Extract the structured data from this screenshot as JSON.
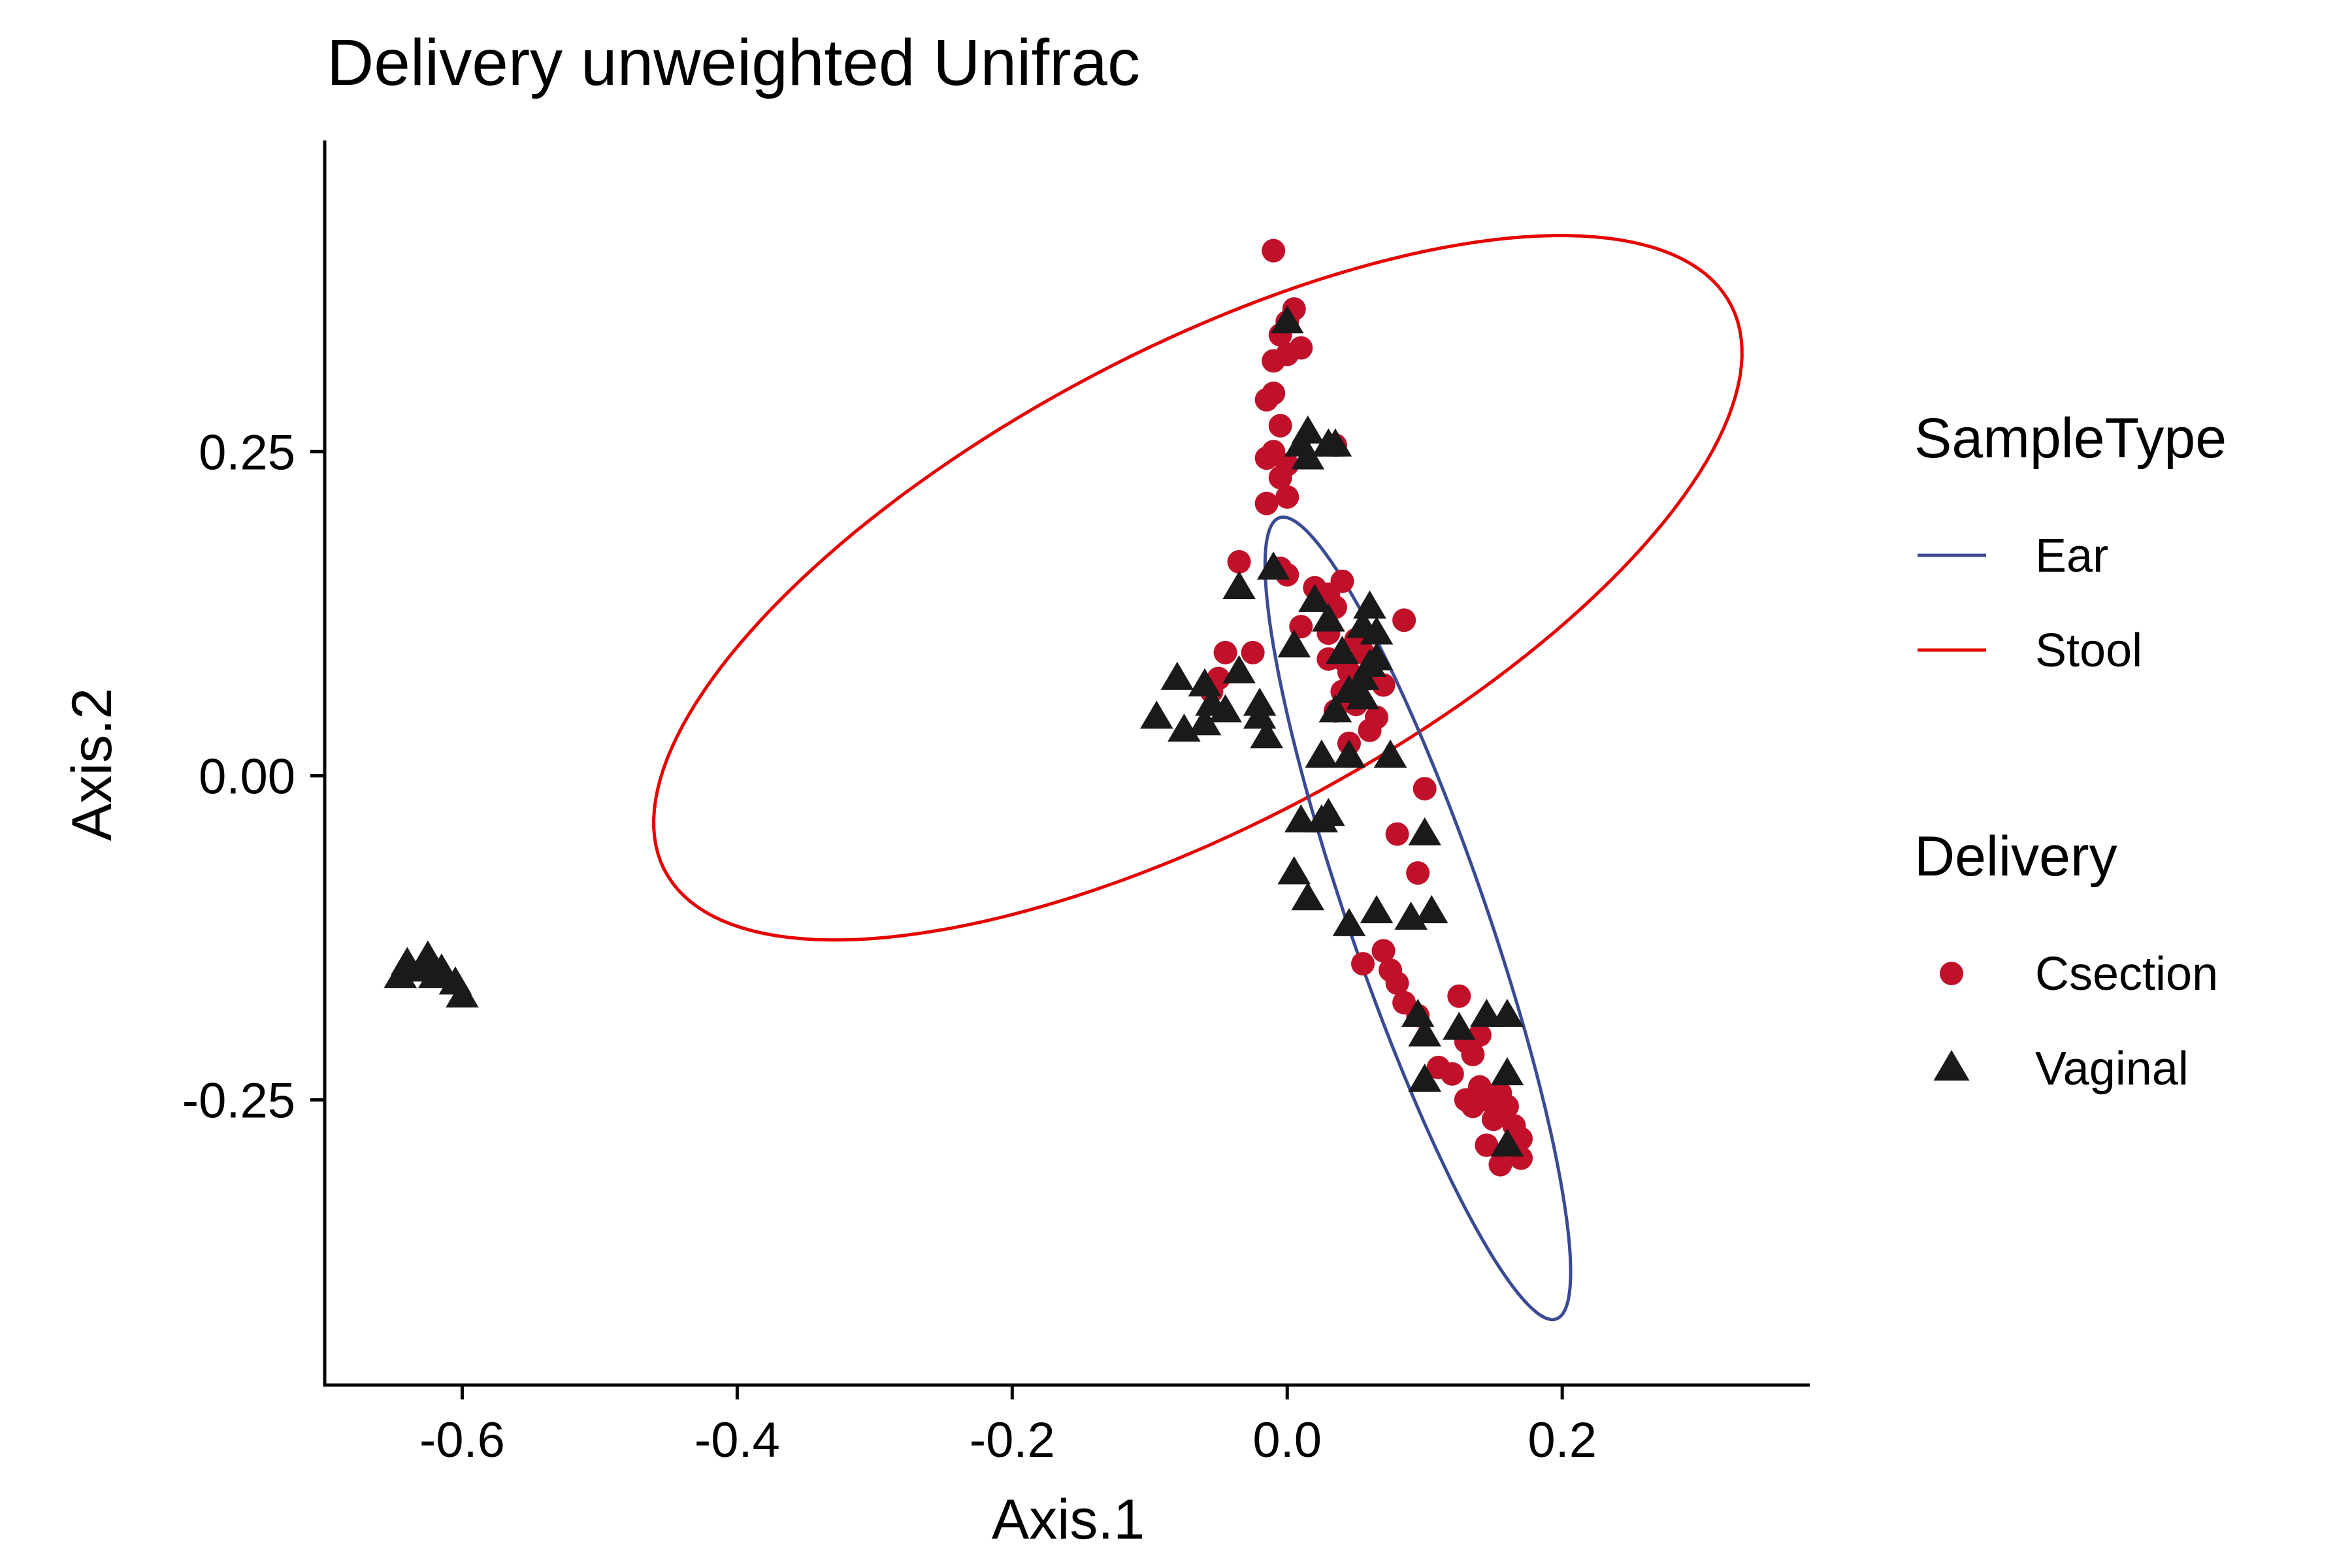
{
  "chart_data": {
    "type": "scatter",
    "title": "Delivery unweighted Unifrac",
    "xlabel": "Axis.1",
    "ylabel": "Axis.2",
    "xlim": [
      -0.7,
      0.38
    ],
    "ylim": [
      -0.47,
      0.49
    ],
    "x_ticks": [
      -0.6,
      -0.4,
      -0.2,
      0.0,
      0.2
    ],
    "x_tick_labels": [
      "-0.6",
      "-0.4",
      "-0.2",
      "0.0",
      "0.2"
    ],
    "y_ticks": [
      -0.25,
      0.0,
      0.25
    ],
    "y_tick_labels": [
      "-0.25",
      "0.00",
      "0.25"
    ],
    "grid": false,
    "colors": {
      "Csection": "#c0102a",
      "Vaginal": "#1a1a1a",
      "Ear": "#3a4a94",
      "Stool": "#e60000"
    },
    "legends": [
      {
        "title": "SampleType",
        "entries": [
          {
            "label": "Ear",
            "key": "Ear",
            "symbol": "line"
          },
          {
            "label": "Stool",
            "key": "Stool",
            "symbol": "line"
          }
        ]
      },
      {
        "title": "Delivery",
        "entries": [
          {
            "label": "Csection",
            "key": "Csection",
            "symbol": "circle"
          },
          {
            "label": "Vaginal",
            "key": "Vaginal",
            "symbol": "triangle"
          }
        ]
      }
    ],
    "ellipses": [
      {
        "key": "Stool",
        "cx": -0.065,
        "cy": 0.145,
        "rx": 0.445,
        "ry": 0.18,
        "angle_deg": 30
      },
      {
        "key": "Ear",
        "cx": 0.095,
        "cy": -0.11,
        "rx": 0.325,
        "ry": 0.05,
        "angle_deg": -72
      }
    ],
    "series": [
      {
        "name": "Csection",
        "marker": "circle",
        "points": [
          [
            -0.01,
            0.405
          ],
          [
            0.0,
            0.35
          ],
          [
            0.005,
            0.36
          ],
          [
            -0.005,
            0.34
          ],
          [
            0.01,
            0.33
          ],
          [
            -0.01,
            0.32
          ],
          [
            0.0,
            0.325
          ],
          [
            -0.015,
            0.29
          ],
          [
            -0.01,
            0.295
          ],
          [
            -0.005,
            0.27
          ],
          [
            -0.01,
            0.25
          ],
          [
            0.0,
            0.24
          ],
          [
            -0.015,
            0.245
          ],
          [
            -0.005,
            0.23
          ],
          [
            -0.015,
            0.21
          ],
          [
            0.0,
            0.215
          ],
          [
            0.035,
            0.255
          ],
          [
            -0.035,
            0.165
          ],
          [
            -0.005,
            0.16
          ],
          [
            0.0,
            0.155
          ],
          [
            0.02,
            0.145
          ],
          [
            0.03,
            0.14
          ],
          [
            0.04,
            0.15
          ],
          [
            0.035,
            0.13
          ],
          [
            0.01,
            0.115
          ],
          [
            0.03,
            0.11
          ],
          [
            0.05,
            0.105
          ],
          [
            0.04,
            0.09
          ],
          [
            0.055,
            0.095
          ],
          [
            0.085,
            0.12
          ],
          [
            0.03,
            0.09
          ],
          [
            0.045,
            0.08
          ],
          [
            0.06,
            0.075
          ],
          [
            0.07,
            0.07
          ],
          [
            -0.045,
            0.095
          ],
          [
            -0.025,
            0.095
          ],
          [
            -0.05,
            0.075
          ],
          [
            -0.055,
            0.065
          ],
          [
            0.04,
            0.065
          ],
          [
            0.05,
            0.055
          ],
          [
            0.065,
            0.045
          ],
          [
            0.035,
            0.05
          ],
          [
            0.06,
            0.035
          ],
          [
            0.045,
            0.025
          ],
          [
            0.1,
            -0.01
          ],
          [
            0.08,
            -0.045
          ],
          [
            0.095,
            -0.075
          ],
          [
            0.07,
            -0.135
          ],
          [
            0.075,
            -0.15
          ],
          [
            0.08,
            -0.16
          ],
          [
            0.055,
            -0.145
          ],
          [
            0.085,
            -0.175
          ],
          [
            0.095,
            -0.185
          ],
          [
            0.125,
            -0.17
          ],
          [
            0.13,
            -0.205
          ],
          [
            0.14,
            -0.2
          ],
          [
            0.135,
            -0.215
          ],
          [
            0.11,
            -0.225
          ],
          [
            0.12,
            -0.23
          ],
          [
            0.14,
            -0.24
          ],
          [
            0.13,
            -0.25
          ],
          [
            0.145,
            -0.25
          ],
          [
            0.155,
            -0.245
          ],
          [
            0.16,
            -0.255
          ],
          [
            0.15,
            -0.265
          ],
          [
            0.165,
            -0.27
          ],
          [
            0.17,
            -0.28
          ],
          [
            0.145,
            -0.285
          ],
          [
            0.155,
            -0.3
          ],
          [
            0.17,
            -0.295
          ],
          [
            0.135,
            -0.255
          ]
        ]
      },
      {
        "name": "Vaginal",
        "marker": "triangle",
        "points": [
          [
            -0.64,
            -0.145
          ],
          [
            -0.63,
            -0.15
          ],
          [
            -0.625,
            -0.14
          ],
          [
            -0.62,
            -0.155
          ],
          [
            -0.615,
            -0.15
          ],
          [
            -0.605,
            -0.16
          ],
          [
            -0.6,
            -0.17
          ],
          [
            -0.645,
            -0.155
          ],
          [
            0.0,
            0.35
          ],
          [
            0.01,
            0.255
          ],
          [
            0.015,
            0.265
          ],
          [
            0.03,
            0.255
          ],
          [
            0.015,
            0.245
          ],
          [
            0.035,
            0.255
          ],
          [
            -0.035,
            0.145
          ],
          [
            -0.01,
            0.16
          ],
          [
            0.02,
            0.135
          ],
          [
            0.03,
            0.12
          ],
          [
            0.06,
            0.13
          ],
          [
            0.055,
            0.115
          ],
          [
            0.065,
            0.11
          ],
          [
            0.04,
            0.095
          ],
          [
            0.06,
            0.085
          ],
          [
            0.055,
            0.075
          ],
          [
            0.065,
            0.09
          ],
          [
            -0.08,
            0.075
          ],
          [
            -0.06,
            0.07
          ],
          [
            -0.035,
            0.08
          ],
          [
            -0.055,
            0.055
          ],
          [
            -0.095,
            0.045
          ],
          [
            -0.075,
            0.035
          ],
          [
            -0.06,
            0.04
          ],
          [
            -0.045,
            0.05
          ],
          [
            -0.02,
            0.055
          ],
          [
            -0.015,
            0.03
          ],
          [
            -0.02,
            0.045
          ],
          [
            0.005,
            0.1
          ],
          [
            0.035,
            0.05
          ],
          [
            0.045,
            0.065
          ],
          [
            0.055,
            0.06
          ],
          [
            0.025,
            0.015
          ],
          [
            0.045,
            0.015
          ],
          [
            0.075,
            0.015
          ],
          [
            0.01,
            -0.035
          ],
          [
            0.03,
            -0.03
          ],
          [
            0.025,
            -0.035
          ],
          [
            0.005,
            -0.075
          ],
          [
            0.015,
            -0.095
          ],
          [
            0.045,
            -0.115
          ],
          [
            0.065,
            -0.105
          ],
          [
            0.09,
            -0.11
          ],
          [
            0.105,
            -0.105
          ],
          [
            0.1,
            -0.045
          ],
          [
            0.095,
            -0.185
          ],
          [
            0.1,
            -0.2
          ],
          [
            0.1,
            -0.235
          ],
          [
            0.125,
            -0.195
          ],
          [
            0.145,
            -0.185
          ],
          [
            0.16,
            -0.185
          ],
          [
            0.16,
            -0.23
          ],
          [
            0.16,
            -0.285
          ]
        ]
      }
    ]
  }
}
